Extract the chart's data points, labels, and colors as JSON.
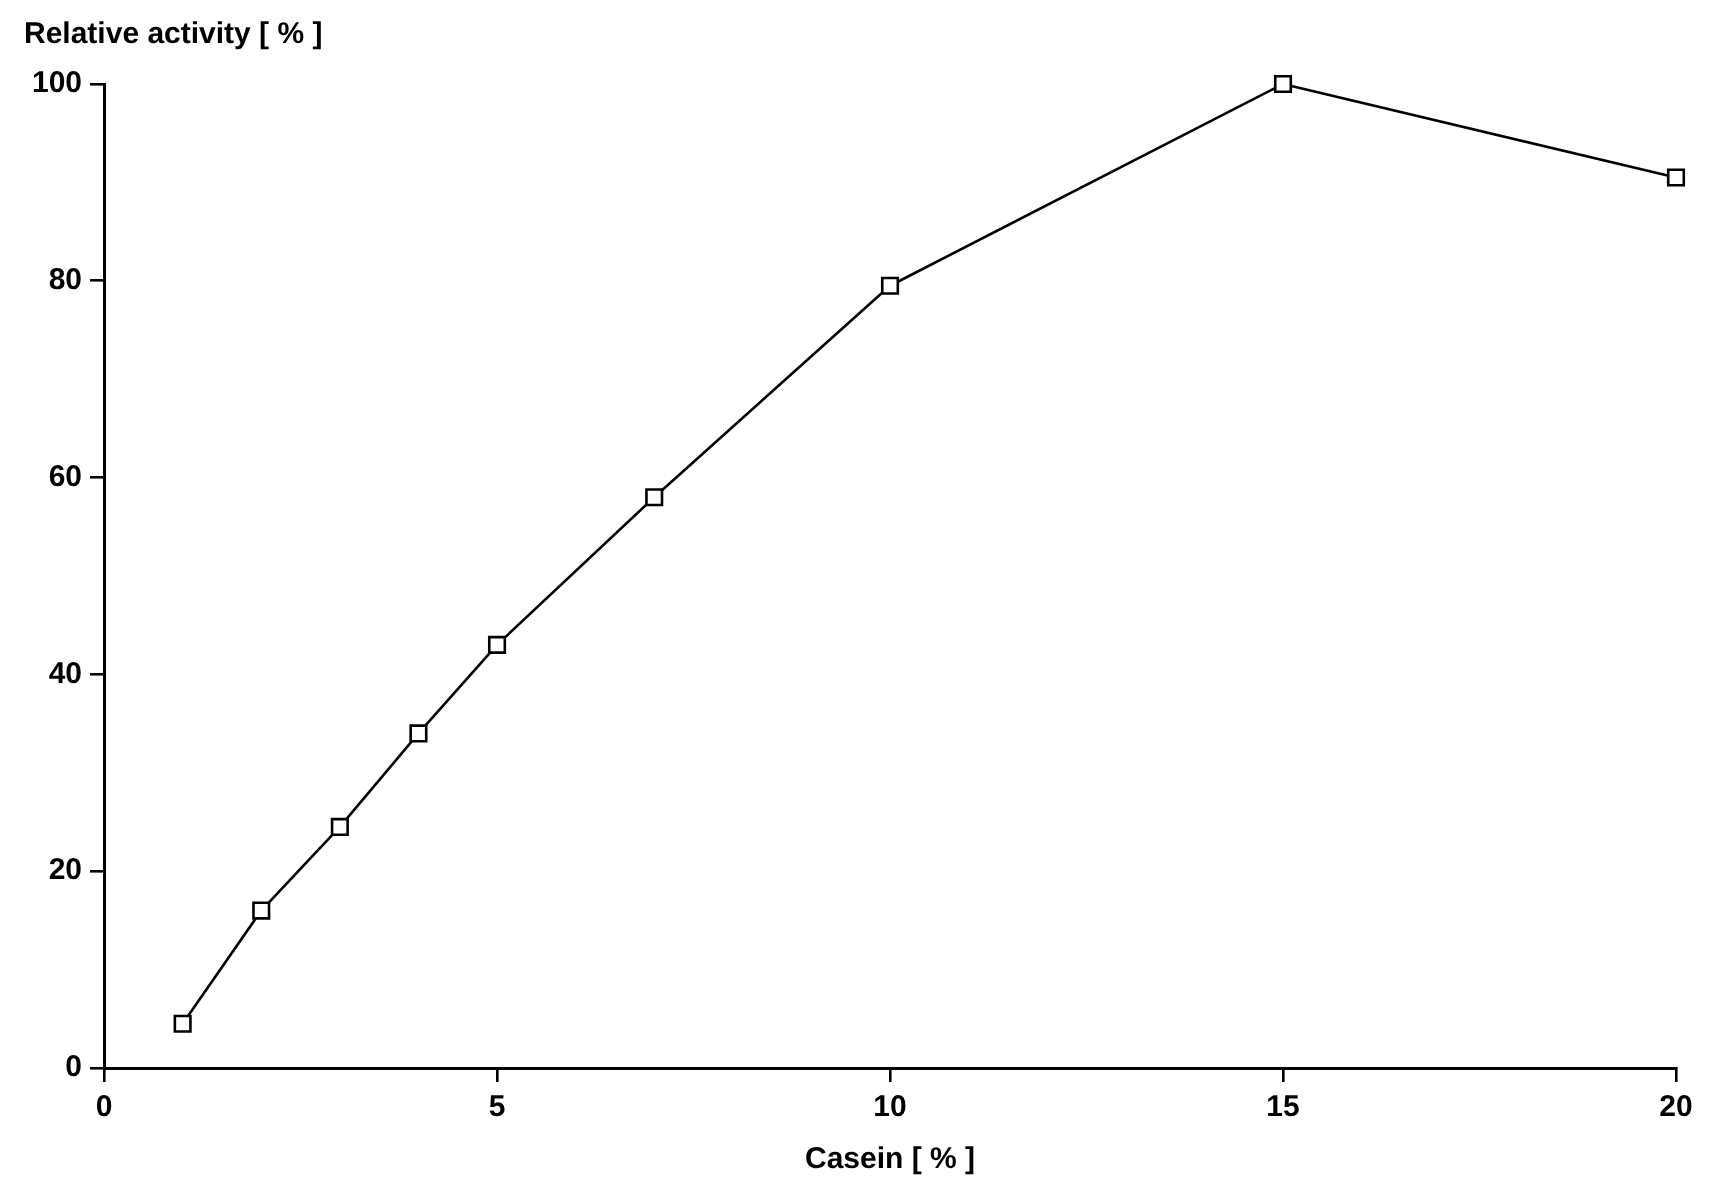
{
  "chart_data": {
    "type": "line",
    "xlabel": "Casein [ % ]",
    "ylabel": "Relative activity [ % ]",
    "x": [
      1,
      2,
      3,
      4,
      5,
      7,
      10,
      15,
      20
    ],
    "series": [
      {
        "color": "#000000",
        "values": [
          4.5,
          16,
          24.5,
          34,
          43,
          58,
          79.5,
          100,
          90.5
        ]
      }
    ],
    "xlim": [
      0,
      20
    ],
    "xticks": [
      0,
      5,
      10,
      15,
      20
    ],
    "ylim": [
      0,
      100
    ],
    "yticks": [
      0,
      20,
      40,
      60,
      80,
      100
    ],
    "grid": false,
    "legend": false,
    "marker": "square",
    "line_style": "solid"
  }
}
